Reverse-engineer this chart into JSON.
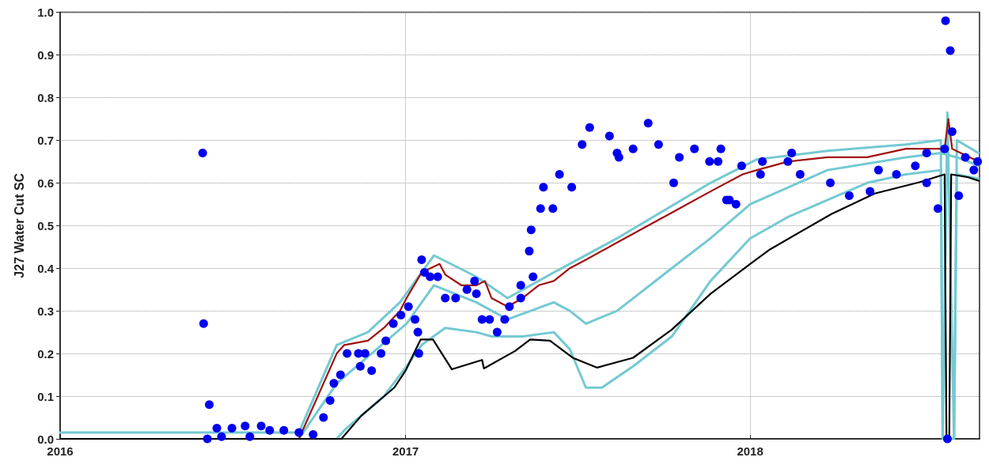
{
  "chart_data": {
    "type": "line",
    "ylabel": "J27 Water Cut SC",
    "xlim": [
      "2016-01-01",
      "2018-09-01"
    ],
    "xticks": [
      "2016",
      "2017",
      "2018"
    ],
    "ylim": [
      0,
      1
    ],
    "yticks": [
      {
        "value": 0,
        "label": "0.0"
      },
      {
        "value": 0.1,
        "label": "0.1"
      },
      {
        "value": 0.2,
        "label": "0.2"
      },
      {
        "value": 0.3,
        "label": "0.3"
      },
      {
        "value": 0.4,
        "label": "0.4"
      },
      {
        "value": 0.5,
        "label": "0.5"
      },
      {
        "value": 0.6,
        "label": "0.6"
      },
      {
        "value": 0.7,
        "label": "0.7"
      },
      {
        "value": 0.8,
        "label": "0.8"
      },
      {
        "value": 0.9,
        "label": "0.9"
      },
      {
        "value": 1,
        "label": "1.0"
      }
    ],
    "grid": true,
    "marker": "none",
    "line_style": "solid",
    "series": [
      {
        "color": "#74c9d2",
        "x": [
          "2016-01-01",
          "2016-09-10",
          "2016-10-20",
          "2016-11-22",
          "2016-12-26",
          "2017-01-31",
          "2017-03-17",
          "2017-04-19",
          "2017-06-07",
          "2017-08-13",
          "2017-11-20",
          "2018-01-08",
          "2018-03-24",
          "2018-06-15",
          "2018-07-22",
          "2018-07-24",
          "2018-07-29",
          "2018-08-05",
          "2018-08-08",
          "2018-08-31"
        ],
        "values": [
          0.015,
          0.015,
          0.22,
          0.25,
          0.32,
          0.43,
          0.38,
          0.33,
          0.39,
          0.47,
          0.6,
          0.655,
          0.675,
          0.69,
          0.7,
          0,
          0.765,
          0,
          0.7,
          0.67
        ]
      },
      {
        "color": "#74c9d2",
        "x": [
          "2016-09-10",
          "2016-10-20",
          "2017-01-02",
          "2017-01-31",
          "2017-03-17",
          "2017-04-19",
          "2017-06-07",
          "2017-06-24",
          "2017-07-11",
          "2017-08-13",
          "2017-10-10",
          "2017-11-20",
          "2018-01-01",
          "2018-03-24",
          "2018-06-15",
          "2018-07-22",
          "2018-08-08",
          "2018-08-31"
        ],
        "values": [
          0,
          0.13,
          0.27,
          0.36,
          0.32,
          0.28,
          0.32,
          0.3,
          0.27,
          0.3,
          0.4,
          0.47,
          0.55,
          0.63,
          0.66,
          0.67,
          0.66,
          0.64
        ]
      },
      {
        "color": "#74c9d2",
        "x": [
          "2016-10-20",
          "2016-10-28",
          "2016-12-09",
          "2017-01-02",
          "2017-01-18",
          "2017-02-12",
          "2017-03-17",
          "2017-04-02",
          "2017-05-05",
          "2017-06-07",
          "2017-06-24",
          "2017-07-11",
          "2017-07-28",
          "2017-08-30",
          "2017-10-10",
          "2017-11-20",
          "2018-01-01",
          "2018-02-10",
          "2018-03-24",
          "2018-05-05",
          "2018-06-15",
          "2018-07-22",
          "2018-07-24",
          "2018-08-05",
          "2018-08-08",
          "2018-08-31"
        ],
        "values": [
          0,
          0.02,
          0.1,
          0.17,
          0.22,
          0.26,
          0.25,
          0.24,
          0.24,
          0.25,
          0.21,
          0.12,
          0.12,
          0.17,
          0.24,
          0.37,
          0.47,
          0.52,
          0.56,
          0.6,
          0.62,
          0.63,
          0,
          0,
          0.62,
          0.61
        ]
      },
      {
        "color": "#a01010",
        "x": [
          "2016-01-01",
          "2016-09-10",
          "2016-10-20",
          "2016-10-28",
          "2016-11-22",
          "2016-12-09",
          "2016-12-26",
          "2017-01-02",
          "2017-01-18",
          "2017-02-06",
          "2017-02-12",
          "2017-03-01",
          "2017-03-17",
          "2017-03-26",
          "2017-04-02",
          "2017-04-19",
          "2017-05-05",
          "2017-05-22",
          "2017-06-07",
          "2017-06-24",
          "2017-07-11",
          "2017-08-13",
          "2017-09-15",
          "2017-10-18",
          "2017-11-20",
          "2017-12-24",
          "2018-01-08",
          "2018-02-10",
          "2018-03-24",
          "2018-05-05",
          "2018-06-15",
          "2018-07-26",
          "2018-07-30",
          "2018-08-03",
          "2018-08-12",
          "2018-08-31"
        ],
        "values": [
          0,
          0,
          0.2,
          0.22,
          0.23,
          0.26,
          0.3,
          0.33,
          0.39,
          0.41,
          0.385,
          0.36,
          0.36,
          0.37,
          0.33,
          0.31,
          0.33,
          0.36,
          0.37,
          0.4,
          0.42,
          0.46,
          0.5,
          0.54,
          0.58,
          0.62,
          0.63,
          0.65,
          0.66,
          0.66,
          0.68,
          0.68,
          0.75,
          0.68,
          0.67,
          0.65
        ]
      },
      {
        "color": "#000000",
        "x": [
          "2016-01-01",
          "2016-10-25",
          "2016-11-15",
          "2016-12-20",
          "2017-01-01",
          "2017-01-13",
          "2017-01-17",
          "2017-01-30",
          "2017-02-19",
          "2017-03-23",
          "2017-03-25",
          "2017-04-27",
          "2017-05-13",
          "2017-06-03",
          "2017-06-27",
          "2017-07-23",
          "2017-08-30",
          "2017-10-10",
          "2017-11-20",
          "2018-01-01",
          "2018-01-22",
          "2018-03-28",
          "2018-05-13",
          "2018-06-30",
          "2018-07-26",
          "2018-07-28",
          "2018-07-31",
          "2018-08-02",
          "2018-08-20",
          "2018-08-31"
        ],
        "values": [
          0,
          0,
          0.054,
          0.12,
          0.16,
          0.215,
          0.233,
          0.233,
          0.163,
          0.185,
          0.165,
          0.206,
          0.233,
          0.23,
          0.19,
          0.167,
          0.19,
          0.256,
          0.34,
          0.41,
          0.444,
          0.527,
          0.575,
          0.602,
          0.62,
          0,
          0,
          0.62,
          0.613,
          0.605
        ]
      },
      {
        "type": "scatter",
        "marker": "circle",
        "color": "#0000ee",
        "x": [
          "2016-05-31",
          "2016-06-01",
          "2016-06-07",
          "2016-06-05",
          "2016-06-15",
          "2016-06-20",
          "2016-07-01",
          "2016-07-15",
          "2016-07-20",
          "2016-08-01",
          "2016-08-10",
          "2016-08-25",
          "2016-09-10",
          "2016-09-25",
          "2016-10-06",
          "2016-10-13",
          "2016-10-17",
          "2016-10-24",
          "2016-10-31",
          "2016-11-12",
          "2016-11-14",
          "2016-11-19",
          "2016-11-26",
          "2016-12-06",
          "2016-12-11",
          "2016-12-19",
          "2016-12-27",
          "2017-01-04",
          "2017-01-11",
          "2017-01-14",
          "2017-01-15",
          "2017-01-18",
          "2017-01-21",
          "2017-01-27",
          "2017-02-04",
          "2017-02-12",
          "2017-02-23",
          "2017-03-07",
          "2017-03-15",
          "2017-03-17",
          "2017-03-23",
          "2017-03-31",
          "2017-04-08",
          "2017-04-16",
          "2017-04-21",
          "2017-05-03",
          "2017-05-03",
          "2017-05-12",
          "2017-05-14",
          "2017-05-16",
          "2017-05-24",
          "2017-05-27",
          "2017-06-06",
          "2017-06-13",
          "2017-06-26",
          "2017-07-07",
          "2017-07-15",
          "2017-08-05",
          "2017-08-13",
          "2017-08-15",
          "2017-08-30",
          "2017-09-15",
          "2017-09-26",
          "2017-10-12",
          "2017-10-18",
          "2017-11-03",
          "2017-11-19",
          "2017-11-28",
          "2017-12-01",
          "2017-12-07",
          "2017-12-10",
          "2017-12-17",
          "2017-12-23",
          "2018-01-12",
          "2018-01-14",
          "2018-02-10",
          "2018-02-14",
          "2018-02-23",
          "2018-03-27",
          "2018-04-16",
          "2018-05-08",
          "2018-05-17",
          "2018-06-05",
          "2018-06-25",
          "2018-07-07",
          "2018-07-07",
          "2018-07-19",
          "2018-07-26",
          "2018-07-27",
          "2018-07-29",
          "2018-08-01",
          "2018-08-03",
          "2018-08-10",
          "2018-08-17",
          "2018-08-26",
          "2018-08-30"
        ],
        "values": [
          0.67,
          0.27,
          0.08,
          0,
          0.025,
          0.005,
          0.025,
          0.03,
          0.005,
          0.03,
          0.02,
          0.02,
          0.015,
          0.01,
          0.05,
          0.09,
          0.13,
          0.15,
          0.2,
          0.2,
          0.17,
          0.2,
          0.16,
          0.2,
          0.23,
          0.27,
          0.29,
          0.31,
          0.28,
          0.25,
          0.2,
          0.42,
          0.39,
          0.38,
          0.38,
          0.33,
          0.33,
          0.35,
          0.37,
          0.34,
          0.28,
          0.28,
          0.25,
          0.28,
          0.31,
          0.33,
          0.36,
          0.44,
          0.49,
          0.38,
          0.54,
          0.59,
          0.54,
          0.62,
          0.59,
          0.69,
          0.73,
          0.71,
          0.67,
          0.66,
          0.68,
          0.74,
          0.69,
          0.6,
          0.66,
          0.68,
          0.65,
          0.65,
          0.68,
          0.56,
          0.56,
          0.55,
          0.64,
          0.62,
          0.65,
          0.65,
          0.67,
          0.62,
          0.6,
          0.57,
          0.58,
          0.63,
          0.62,
          0.64,
          0.6,
          0.67,
          0.54,
          0.68,
          0.98,
          0,
          0.91,
          0.72,
          0.57,
          0.66,
          0.63,
          0.65
        ]
      }
    ]
  }
}
